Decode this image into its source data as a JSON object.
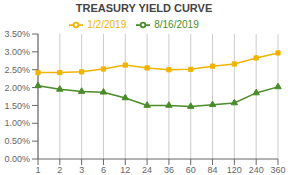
{
  "chart_data": {
    "type": "line",
    "title": "TREASURY YIELD CURVE",
    "categories": [
      "1",
      "2",
      "3",
      "6",
      "12",
      "24",
      "36",
      "60",
      "84",
      "120",
      "240",
      "360"
    ],
    "series": [
      {
        "name": "1/2/2019",
        "color": "#f0b400",
        "marker": "square",
        "values": [
          2.42,
          2.42,
          2.44,
          2.52,
          2.63,
          2.55,
          2.5,
          2.51,
          2.6,
          2.66,
          2.83,
          2.97
        ]
      },
      {
        "name": "8/16/2019",
        "color": "#4a8c2a",
        "marker": "triangle",
        "values": [
          2.05,
          1.95,
          1.89,
          1.87,
          1.71,
          1.5,
          1.5,
          1.47,
          1.52,
          1.57,
          1.85,
          2.02
        ]
      }
    ],
    "ylim": [
      0.0,
      3.5
    ],
    "yticks": [
      {
        "value": 0.0,
        "label": "0.00%"
      },
      {
        "value": 0.5,
        "label": "0.50%"
      },
      {
        "value": 1.0,
        "label": "1.00%"
      },
      {
        "value": 1.5,
        "label": "1.50%"
      },
      {
        "value": 2.0,
        "label": "2.00%"
      },
      {
        "value": 2.5,
        "label": "2.50%"
      },
      {
        "value": 3.0,
        "label": "3.00%"
      },
      {
        "value": 3.5,
        "label": "3.50%"
      }
    ],
    "grid": "x",
    "legend": "top"
  }
}
